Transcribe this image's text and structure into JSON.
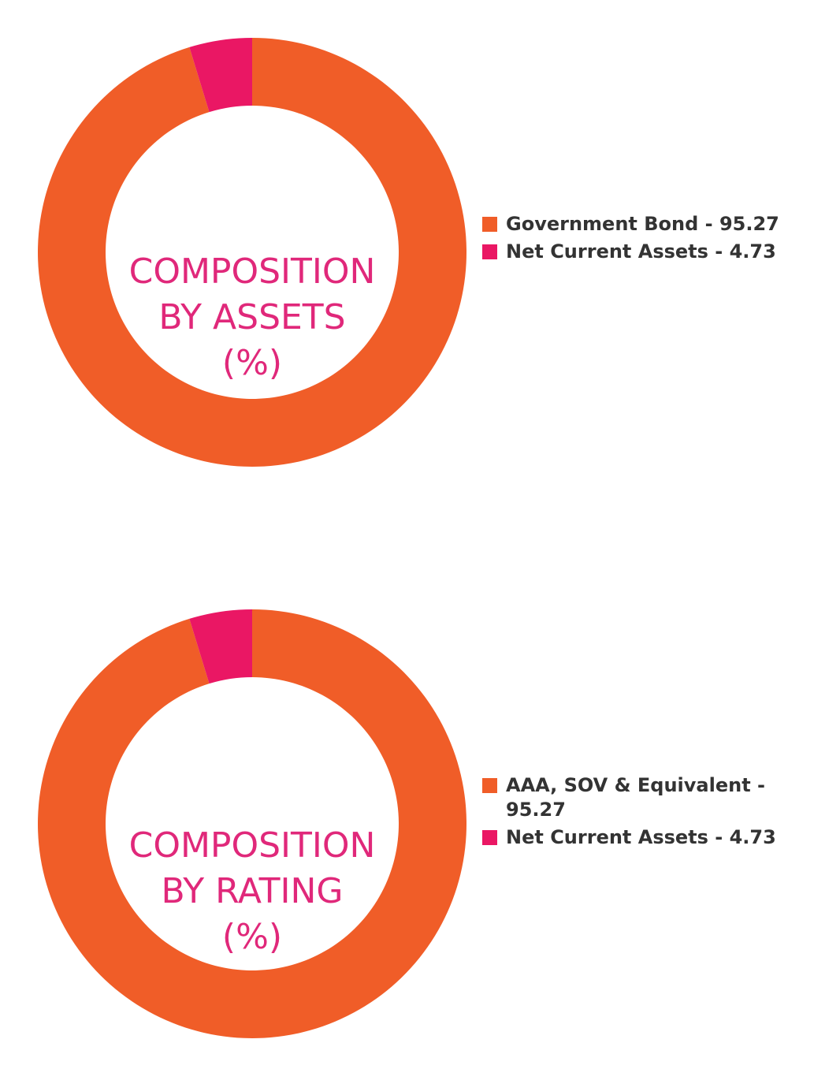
{
  "colors": {
    "orange": "#f05d28",
    "pink": "#ea1764",
    "title": "#e0287a",
    "legend_text": "#333333"
  },
  "charts": [
    {
      "title_lines": [
        "COMPOSITION",
        "BY ASSETS",
        "(%)"
      ],
      "legend": [
        "Government Bond - 95.27",
        "Net Current Assets - 4.73"
      ]
    },
    {
      "title_lines": [
        "COMPOSITION",
        "BY RATING",
        "(%)"
      ],
      "legend": [
        "AAA, SOV & Equivalent - 95.27",
        "Net Current Assets - 4.73"
      ]
    }
  ],
  "chart_data": [
    {
      "type": "pie",
      "title": "COMPOSITION BY ASSETS (%)",
      "donut": true,
      "categories": [
        "Government Bond",
        "Net Current Assets"
      ],
      "values": [
        95.27,
        4.73
      ],
      "colors": [
        "#f05d28",
        "#ea1764"
      ],
      "legend_position": "right"
    },
    {
      "type": "pie",
      "title": "COMPOSITION BY RATING (%)",
      "donut": true,
      "categories": [
        "AAA, SOV & Equivalent",
        "Net Current Assets"
      ],
      "values": [
        95.27,
        4.73
      ],
      "colors": [
        "#f05d28",
        "#ea1764"
      ],
      "legend_position": "right"
    }
  ]
}
